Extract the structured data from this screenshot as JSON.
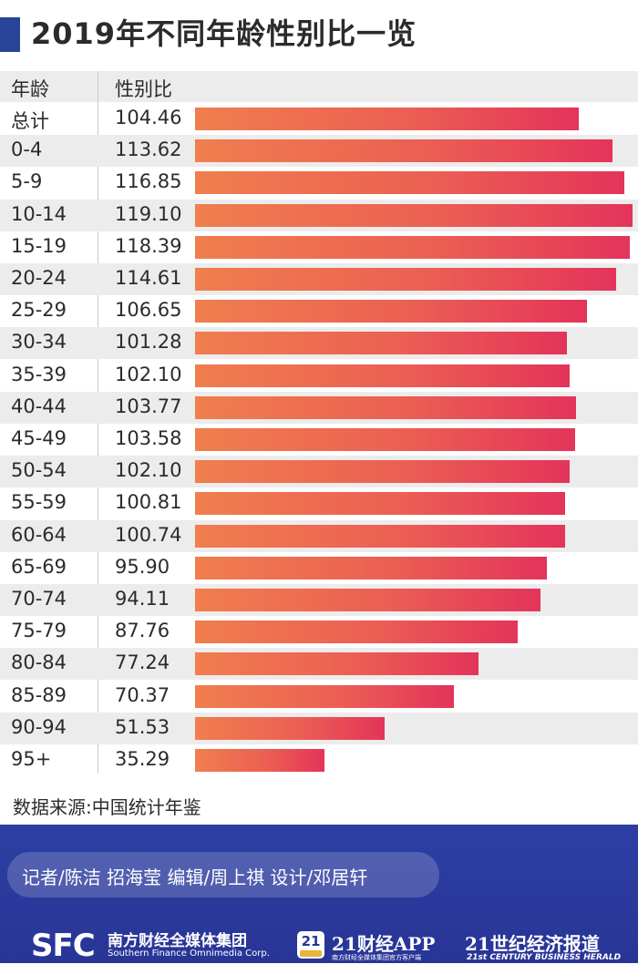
{
  "title": "2019年不同年龄性别比一览",
  "header": {
    "age_label": "年龄",
    "ratio_label": "性别比"
  },
  "chart_data": {
    "type": "bar",
    "orientation": "horizontal",
    "title": "2019年不同年龄性别比一览",
    "categories": [
      "总计",
      "0-4",
      "5-9",
      "10-14",
      "15-19",
      "20-24",
      "25-29",
      "30-34",
      "35-39",
      "40-44",
      "45-49",
      "50-54",
      "55-59",
      "60-64",
      "65-69",
      "70-74",
      "75-79",
      "80-84",
      "85-89",
      "90-94",
      "95+"
    ],
    "values": [
      104.46,
      113.62,
      116.85,
      119.1,
      118.39,
      114.61,
      106.65,
      101.28,
      102.1,
      103.77,
      103.58,
      102.1,
      100.81,
      100.74,
      95.9,
      94.11,
      87.76,
      77.24,
      70.37,
      51.53,
      35.29
    ],
    "value_labels": [
      "104.46",
      "113.62",
      "116.85",
      "119.10",
      "118.39",
      "114.61",
      "106.65",
      "101.28",
      "102.10",
      "103.77",
      "103.58",
      "102.10",
      "100.81",
      "100.74",
      "95.90",
      "94.11",
      "87.76",
      "77.24",
      "70.37",
      "51.53",
      "35.29"
    ],
    "xlim": [
      0,
      119.1
    ],
    "colors": {
      "bar_start": "#f07e4e",
      "bar_end": "#e3345a"
    },
    "grid": false
  },
  "source": "数据来源:中国统计年鉴",
  "footer": {
    "credits": "记者/陈洁 招海莹 编辑/周上祺 设计/邓居轩",
    "sfc_mark": "SFC",
    "sfc_name_cn": "南方财经全媒体集团",
    "sfc_name_en": "Southern Finance Omnimedia Corp.",
    "app_badge": "21",
    "app_name": "21财经APP",
    "app_sub": "南方财经全媒体集团官方客户端",
    "herald_cn": "21世纪经济报道",
    "herald_en": "21st CENTURY BUSINESS HERALD"
  },
  "colors": {
    "accent": "#2a4597",
    "footer_bg": "#2d3fa3",
    "row_alt": "#ececec"
  }
}
